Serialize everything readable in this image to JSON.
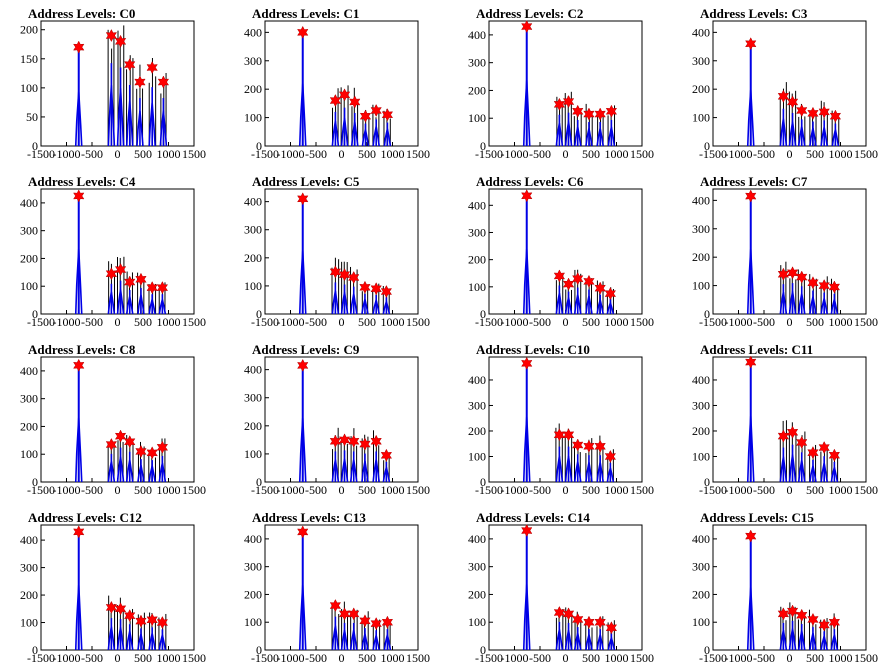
{
  "figure": {
    "background": "#ffffff",
    "hist_color": "#0000e6",
    "marker_color": "#ff0000"
  },
  "chart_data": [
    {
      "type": "bar",
      "title": "Address Levels: C0",
      "xlim": [
        -1500,
        1500
      ],
      "ylim": [
        0,
        215
      ],
      "xticks": [
        "-1500",
        "-1000",
        "-500",
        "0",
        "500",
        "1000",
        "1500"
      ],
      "yticks": [
        "0",
        "50",
        "100",
        "150",
        "200"
      ],
      "peaks": [
        {
          "x": -760,
          "y": 170
        },
        {
          "x": -120,
          "y": 190
        },
        {
          "x": 60,
          "y": 180
        },
        {
          "x": 240,
          "y": 140
        },
        {
          "x": 440,
          "y": 110
        },
        {
          "x": 680,
          "y": 135
        },
        {
          "x": 900,
          "y": 110
        }
      ]
    },
    {
      "type": "bar",
      "title": "Address Levels: C1",
      "xlim": [
        -1500,
        1500
      ],
      "ylim": [
        0,
        440
      ],
      "xticks": [
        "-1500",
        "-1000",
        "-500",
        "0",
        "500",
        "1000",
        "1500"
      ],
      "yticks": [
        "0",
        "100",
        "200",
        "300",
        "400"
      ],
      "peaks": [
        {
          "x": -760,
          "y": 400
        },
        {
          "x": -120,
          "y": 160
        },
        {
          "x": 60,
          "y": 180
        },
        {
          "x": 260,
          "y": 155
        },
        {
          "x": 470,
          "y": 105
        },
        {
          "x": 680,
          "y": 125
        },
        {
          "x": 900,
          "y": 110
        }
      ]
    },
    {
      "type": "bar",
      "title": "Address Levels: C2",
      "xlim": [
        -1500,
        1500
      ],
      "ylim": [
        0,
        450
      ],
      "xticks": [
        "-1500",
        "-1000",
        "-500",
        "0",
        "500",
        "1000",
        "1500"
      ],
      "yticks": [
        "0",
        "100",
        "200",
        "300",
        "400"
      ],
      "peaks": [
        {
          "x": -760,
          "y": 430
        },
        {
          "x": -120,
          "y": 150
        },
        {
          "x": 60,
          "y": 160
        },
        {
          "x": 240,
          "y": 125
        },
        {
          "x": 460,
          "y": 115
        },
        {
          "x": 680,
          "y": 115
        },
        {
          "x": 900,
          "y": 125
        }
      ]
    },
    {
      "type": "bar",
      "title": "Address Levels: C3",
      "xlim": [
        -1500,
        1500
      ],
      "ylim": [
        0,
        440
      ],
      "xticks": [
        "-1500",
        "-1000",
        "-500",
        "0",
        "500",
        "1000",
        "1500"
      ],
      "yticks": [
        "0",
        "100",
        "200",
        "300",
        "400"
      ],
      "peaks": [
        {
          "x": -760,
          "y": 360
        },
        {
          "x": -120,
          "y": 175
        },
        {
          "x": 60,
          "y": 155
        },
        {
          "x": 240,
          "y": 125
        },
        {
          "x": 460,
          "y": 115
        },
        {
          "x": 680,
          "y": 120
        },
        {
          "x": 900,
          "y": 105
        }
      ]
    },
    {
      "type": "bar",
      "title": "Address Levels: C4",
      "xlim": [
        -1500,
        1500
      ],
      "ylim": [
        0,
        450
      ],
      "xticks": [
        "-1500",
        "-1000",
        "-500",
        "0",
        "500",
        "1000",
        "1500"
      ],
      "yticks": [
        "0",
        "100",
        "200",
        "300",
        "400"
      ],
      "peaks": [
        {
          "x": -760,
          "y": 425
        },
        {
          "x": -120,
          "y": 145
        },
        {
          "x": 60,
          "y": 160
        },
        {
          "x": 240,
          "y": 115
        },
        {
          "x": 460,
          "y": 125
        },
        {
          "x": 680,
          "y": 95
        },
        {
          "x": 880,
          "y": 95
        }
      ]
    },
    {
      "type": "bar",
      "title": "Address Levels: C5",
      "xlim": [
        -1500,
        1500
      ],
      "ylim": [
        0,
        445
      ],
      "xticks": [
        "-1500",
        "-1000",
        "-500",
        "0",
        "500",
        "1000",
        "1500"
      ],
      "yticks": [
        "0",
        "100",
        "200",
        "300",
        "400"
      ],
      "peaks": [
        {
          "x": -760,
          "y": 410
        },
        {
          "x": -120,
          "y": 150
        },
        {
          "x": 60,
          "y": 140
        },
        {
          "x": 240,
          "y": 130
        },
        {
          "x": 460,
          "y": 95
        },
        {
          "x": 680,
          "y": 90
        },
        {
          "x": 880,
          "y": 80
        }
      ]
    },
    {
      "type": "bar",
      "title": "Address Levels: C6",
      "xlim": [
        -1500,
        1500
      ],
      "ylim": [
        0,
        460
      ],
      "xticks": [
        "-1500",
        "-1000",
        "-500",
        "0",
        "500",
        "1000",
        "1500"
      ],
      "yticks": [
        "0",
        "100",
        "200",
        "300",
        "400"
      ],
      "peaks": [
        {
          "x": -760,
          "y": 435
        },
        {
          "x": -120,
          "y": 140
        },
        {
          "x": 60,
          "y": 110
        },
        {
          "x": 240,
          "y": 130
        },
        {
          "x": 460,
          "y": 120
        },
        {
          "x": 680,
          "y": 95
        },
        {
          "x": 880,
          "y": 75
        }
      ]
    },
    {
      "type": "bar",
      "title": "Address Levels: C7",
      "xlim": [
        -1500,
        1500
      ],
      "ylim": [
        0,
        440
      ],
      "xticks": [
        "-1500",
        "-1000",
        "-500",
        "0",
        "500",
        "1000",
        "1500"
      ],
      "yticks": [
        "0",
        "100",
        "200",
        "300",
        "400"
      ],
      "peaks": [
        {
          "x": -760,
          "y": 415
        },
        {
          "x": -120,
          "y": 140
        },
        {
          "x": 60,
          "y": 145
        },
        {
          "x": 240,
          "y": 130
        },
        {
          "x": 460,
          "y": 110
        },
        {
          "x": 680,
          "y": 100
        },
        {
          "x": 880,
          "y": 95
        }
      ]
    },
    {
      "type": "bar",
      "title": "Address Levels: C8",
      "xlim": [
        -1500,
        1500
      ],
      "ylim": [
        0,
        450
      ],
      "xticks": [
        "-1500",
        "-1000",
        "-500",
        "0",
        "500",
        "1000",
        "1500"
      ],
      "yticks": [
        "0",
        "100",
        "200",
        "300",
        "400"
      ],
      "peaks": [
        {
          "x": -760,
          "y": 420
        },
        {
          "x": -120,
          "y": 135
        },
        {
          "x": 60,
          "y": 165
        },
        {
          "x": 240,
          "y": 145
        },
        {
          "x": 460,
          "y": 110
        },
        {
          "x": 680,
          "y": 105
        },
        {
          "x": 880,
          "y": 125
        }
      ]
    },
    {
      "type": "bar",
      "title": "Address Levels: C9",
      "xlim": [
        -1500,
        1500
      ],
      "ylim": [
        0,
        445
      ],
      "xticks": [
        "-1500",
        "-1000",
        "-500",
        "0",
        "500",
        "1000",
        "1500"
      ],
      "yticks": [
        "0",
        "100",
        "200",
        "300",
        "400"
      ],
      "peaks": [
        {
          "x": -760,
          "y": 415
        },
        {
          "x": -120,
          "y": 145
        },
        {
          "x": 60,
          "y": 150
        },
        {
          "x": 240,
          "y": 145
        },
        {
          "x": 460,
          "y": 135
        },
        {
          "x": 680,
          "y": 145
        },
        {
          "x": 880,
          "y": 95
        }
      ]
    },
    {
      "type": "bar",
      "title": "Address Levels: C10",
      "xlim": [
        -1500,
        1500
      ],
      "ylim": [
        0,
        490
      ],
      "xticks": [
        "-1500",
        "-1000",
        "-500",
        "0",
        "500",
        "1000",
        "1500"
      ],
      "yticks": [
        "0",
        "100",
        "200",
        "300",
        "400"
      ],
      "peaks": [
        {
          "x": -760,
          "y": 465
        },
        {
          "x": -120,
          "y": 185
        },
        {
          "x": 60,
          "y": 185
        },
        {
          "x": 240,
          "y": 145
        },
        {
          "x": 460,
          "y": 140
        },
        {
          "x": 680,
          "y": 140
        },
        {
          "x": 880,
          "y": 100
        }
      ]
    },
    {
      "type": "bar",
      "title": "Address Levels: C11",
      "xlim": [
        -1500,
        1500
      ],
      "ylim": [
        0,
        490
      ],
      "xticks": [
        "-1500",
        "-1000",
        "-500",
        "0",
        "500",
        "1000",
        "1500"
      ],
      "yticks": [
        "0",
        "100",
        "200",
        "300",
        "400"
      ],
      "peaks": [
        {
          "x": -760,
          "y": 470
        },
        {
          "x": -120,
          "y": 180
        },
        {
          "x": 60,
          "y": 195
        },
        {
          "x": 240,
          "y": 155
        },
        {
          "x": 460,
          "y": 115
        },
        {
          "x": 680,
          "y": 135
        },
        {
          "x": 880,
          "y": 105
        }
      ]
    },
    {
      "type": "bar",
      "title": "Address Levels: C12",
      "xlim": [
        -1500,
        1500
      ],
      "ylim": [
        0,
        455
      ],
      "xticks": [
        "-1500",
        "-1000",
        "-500",
        "0",
        "500",
        "1000",
        "1500"
      ],
      "yticks": [
        "0",
        "100",
        "200",
        "300",
        "400"
      ],
      "peaks": [
        {
          "x": -760,
          "y": 430
        },
        {
          "x": -120,
          "y": 155
        },
        {
          "x": 60,
          "y": 150
        },
        {
          "x": 240,
          "y": 125
        },
        {
          "x": 460,
          "y": 105
        },
        {
          "x": 680,
          "y": 110
        },
        {
          "x": 880,
          "y": 100
        }
      ]
    },
    {
      "type": "bar",
      "title": "Address Levels: C13",
      "xlim": [
        -1500,
        1500
      ],
      "ylim": [
        0,
        450
      ],
      "xticks": [
        "-1500",
        "-1000",
        "-500",
        "0",
        "500",
        "1000",
        "1500"
      ],
      "yticks": [
        "0",
        "100",
        "200",
        "300",
        "400"
      ],
      "peaks": [
        {
          "x": -760,
          "y": 425
        },
        {
          "x": -120,
          "y": 160
        },
        {
          "x": 60,
          "y": 130
        },
        {
          "x": 240,
          "y": 130
        },
        {
          "x": 460,
          "y": 105
        },
        {
          "x": 680,
          "y": 95
        },
        {
          "x": 900,
          "y": 100
        }
      ]
    },
    {
      "type": "bar",
      "title": "Address Levels: C14",
      "xlim": [
        -1500,
        1500
      ],
      "ylim": [
        0,
        450
      ],
      "xticks": [
        "-1500",
        "-1000",
        "-500",
        "0",
        "500",
        "1000",
        "1500"
      ],
      "yticks": [
        "0",
        "100",
        "200",
        "300",
        "400"
      ],
      "peaks": [
        {
          "x": -760,
          "y": 430
        },
        {
          "x": -120,
          "y": 135
        },
        {
          "x": 60,
          "y": 130
        },
        {
          "x": 240,
          "y": 110
        },
        {
          "x": 460,
          "y": 100
        },
        {
          "x": 680,
          "y": 100
        },
        {
          "x": 900,
          "y": 80
        }
      ]
    },
    {
      "type": "bar",
      "title": "Address Levels: C15",
      "xlim": [
        -1500,
        1500
      ],
      "ylim": [
        0,
        450
      ],
      "xticks": [
        "-1500",
        "-1000",
        "-500",
        "0",
        "500",
        "1000",
        "1500"
      ],
      "yticks": [
        "0",
        "100",
        "200",
        "300",
        "400"
      ],
      "peaks": [
        {
          "x": -760,
          "y": 410
        },
        {
          "x": -120,
          "y": 130
        },
        {
          "x": 60,
          "y": 140
        },
        {
          "x": 240,
          "y": 125
        },
        {
          "x": 460,
          "y": 110
        },
        {
          "x": 680,
          "y": 90
        },
        {
          "x": 880,
          "y": 100
        }
      ]
    }
  ]
}
